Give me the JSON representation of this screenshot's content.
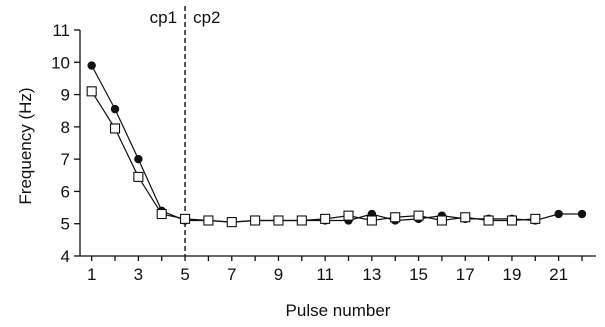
{
  "chart_data": {
    "type": "line",
    "xlabel": "Pulse number",
    "ylabel": "Frequency (Hz)",
    "xlim": [
      0.5,
      22.6
    ],
    "ylim": [
      4,
      11
    ],
    "x_ticks": [
      1,
      3,
      5,
      7,
      9,
      11,
      13,
      15,
      17,
      19,
      21
    ],
    "y_ticks": [
      4,
      5,
      6,
      7,
      8,
      9,
      10,
      11
    ],
    "annotations": [
      {
        "label": "cp1",
        "x": 5
      },
      {
        "label": "cp2",
        "x": 5
      }
    ],
    "vline_x": 5,
    "series": [
      {
        "marker": "filled-circle",
        "color": "#111111",
        "x": [
          1,
          2,
          3,
          4,
          5,
          6,
          7,
          8,
          9,
          10,
          11,
          12,
          13,
          14,
          15,
          16,
          17,
          18,
          19,
          20,
          21,
          22
        ],
        "values": [
          9.9,
          8.55,
          7.0,
          5.4,
          5.1,
          5.1,
          5.05,
          5.1,
          5.1,
          5.1,
          5.1,
          5.1,
          5.3,
          5.1,
          5.15,
          5.25,
          5.15,
          5.15,
          5.15,
          5.1,
          5.3,
          5.3
        ]
      },
      {
        "marker": "open-square",
        "color": "#111111",
        "x": [
          1,
          2,
          3,
          4,
          5,
          6,
          7,
          8,
          9,
          10,
          11,
          12,
          13,
          14,
          15,
          16,
          17,
          18,
          19,
          20
        ],
        "values": [
          9.1,
          7.95,
          6.45,
          5.3,
          5.15,
          5.1,
          5.05,
          5.1,
          5.1,
          5.1,
          5.15,
          5.25,
          5.1,
          5.2,
          5.25,
          5.1,
          5.2,
          5.1,
          5.1,
          5.15
        ]
      }
    ]
  }
}
